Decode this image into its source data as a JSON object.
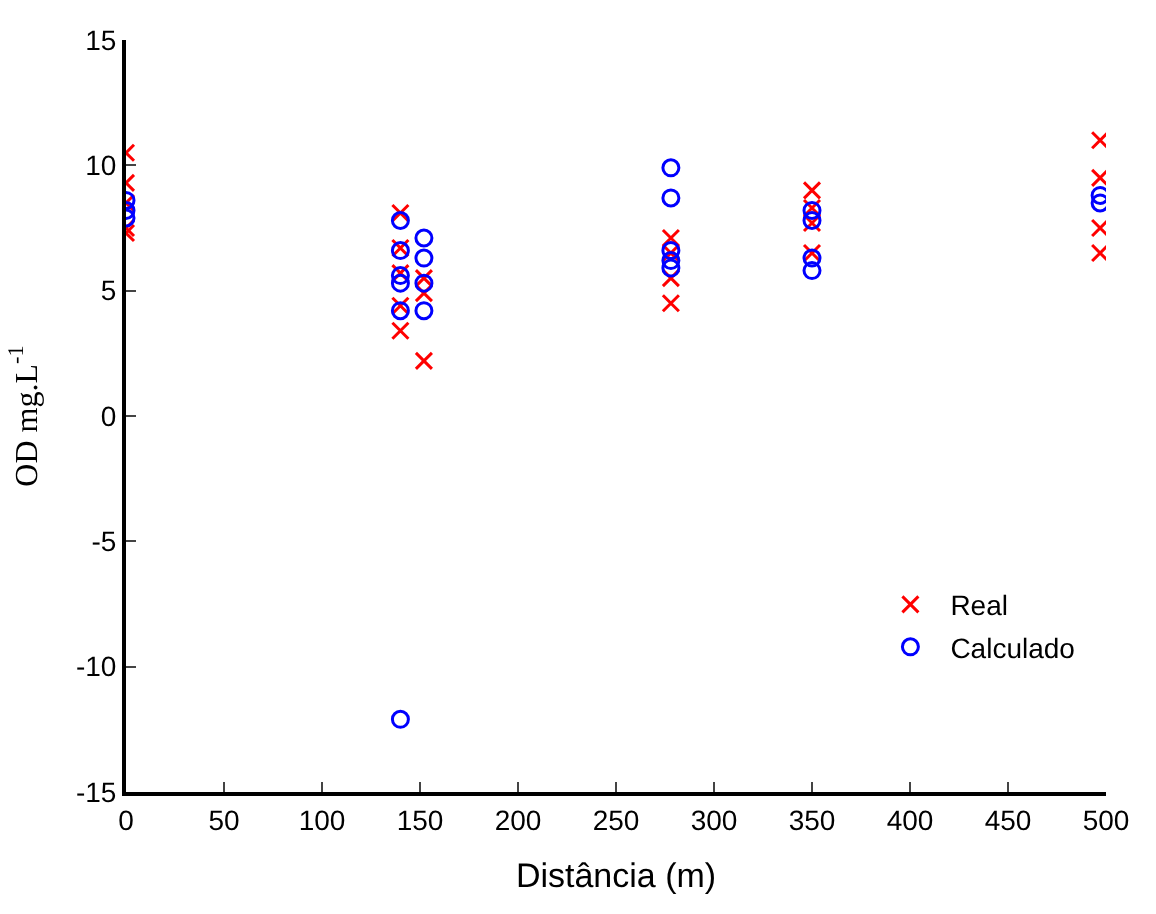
{
  "chart_data": {
    "type": "scatter",
    "xlabel": "Distância (m)",
    "ylabel": "OD mg.L$^{-1}$",
    "xlim": [
      0,
      500
    ],
    "xticks": [
      0,
      50,
      100,
      150,
      200,
      250,
      300,
      350,
      400,
      450,
      500
    ],
    "ylim": [
      -15,
      15
    ],
    "yticks": [
      -15,
      -10,
      -5,
      0,
      5,
      10,
      15
    ],
    "legend": "bottom right",
    "series": [
      {
        "name": "Real",
        "color": "#ff0000",
        "marker": "cross",
        "x": [
          0,
          0,
          0,
          0,
          0,
          140,
          140,
          140,
          140,
          140,
          152,
          152,
          152,
          278,
          278,
          278,
          278,
          350,
          350,
          350,
          350,
          497,
          497,
          497,
          497
        ],
        "values": [
          10.5,
          9.3,
          8.5,
          7.5,
          7.3,
          8.1,
          6.7,
          5.7,
          4.4,
          3.4,
          5.5,
          4.9,
          2.2,
          7.1,
          6.5,
          5.5,
          4.5,
          9.0,
          8.3,
          7.7,
          6.5,
          11.0,
          9.5,
          7.5,
          6.5
        ]
      },
      {
        "name": "Calculado",
        "color": "#0000ff",
        "marker": "circle",
        "x": [
          0,
          0,
          0,
          140,
          140,
          140,
          140,
          140,
          140,
          152,
          152,
          152,
          152,
          278,
          278,
          278,
          278,
          278,
          350,
          350,
          350,
          350,
          497,
          497
        ],
        "values": [
          8.6,
          8.2,
          7.9,
          7.8,
          6.6,
          5.6,
          5.3,
          4.2,
          -12.1,
          7.1,
          6.3,
          5.3,
          4.2,
          9.9,
          8.7,
          6.6,
          6.2,
          5.9,
          8.2,
          7.8,
          6.3,
          5.8,
          8.8,
          8.5
        ]
      }
    ]
  }
}
